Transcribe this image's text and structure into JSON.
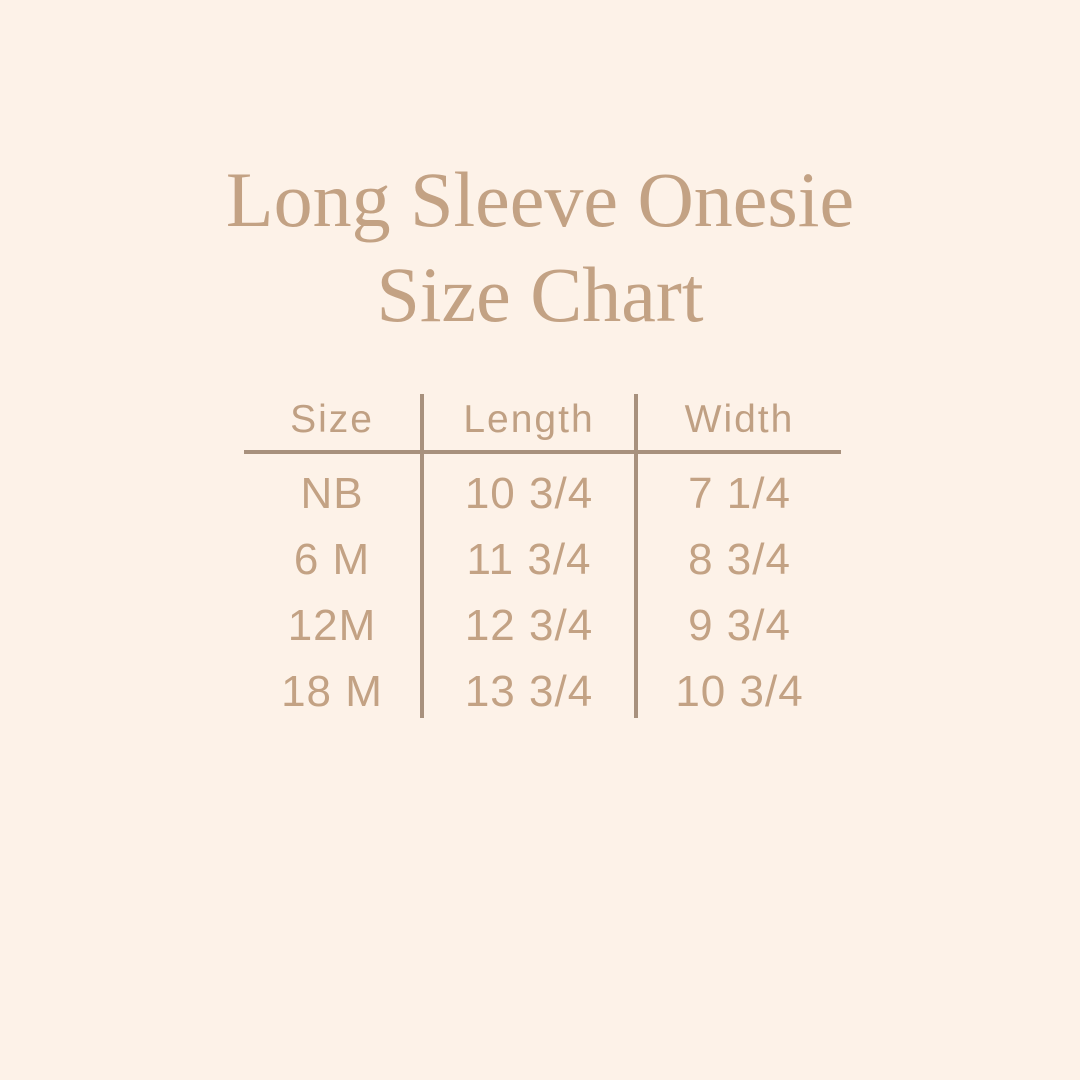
{
  "page": {
    "background_color": "#fdf2e8",
    "title_color": "#c3a284",
    "table_text_color": "#c3a284",
    "line_color": "#a8917d"
  },
  "title": {
    "line1": "Long Sleeve Onesie",
    "line2": "Size Chart"
  },
  "chart_data": {
    "type": "table",
    "title": "Long Sleeve Onesie Size Chart",
    "columns": [
      "Size",
      "Length",
      "Width"
    ],
    "rows": [
      {
        "size": "NB",
        "length": "10 3/4",
        "width": "7 1/4"
      },
      {
        "size": "6 M",
        "length": "11 3/4",
        "width": "8 3/4"
      },
      {
        "size": "12M",
        "length": "12 3/4",
        "width": "9 3/4"
      },
      {
        "size": "18 M",
        "length": "13 3/4",
        "width": "10 3/4"
      }
    ],
    "layout": {
      "header_divider": "horizontal line under header spanning all columns",
      "column_dividers": "vertical lines between the three columns through header and body"
    }
  }
}
